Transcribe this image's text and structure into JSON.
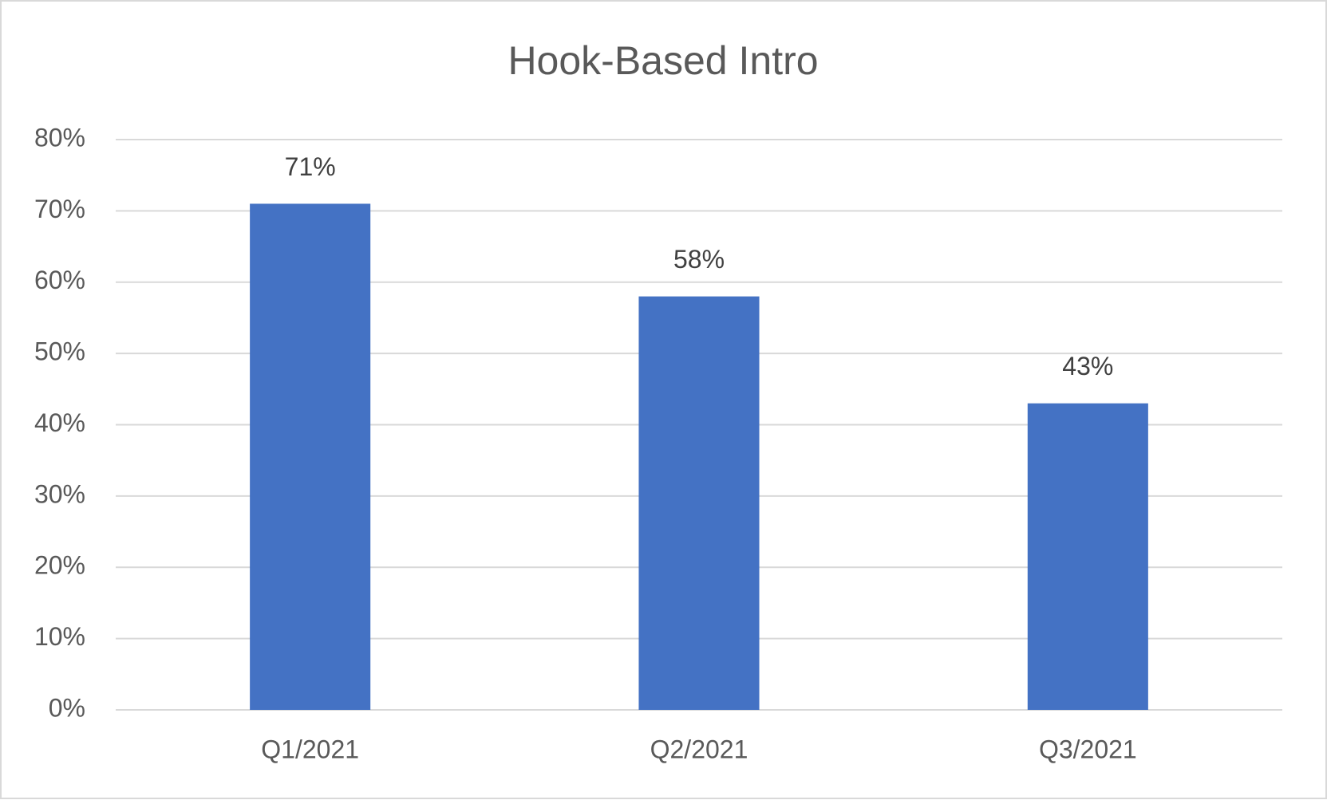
{
  "chart_data": {
    "type": "bar",
    "title": "Hook-Based Intro",
    "categories": [
      "Q1/2021",
      "Q2/2021",
      "Q3/2021"
    ],
    "values": [
      71,
      58,
      43
    ],
    "value_labels": [
      "71%",
      "58%",
      "43%"
    ],
    "color": "#4472c4",
    "ylim": [
      0,
      80
    ],
    "yticks": [
      {
        "value": 0,
        "label": "0%"
      },
      {
        "value": 10,
        "label": "10%"
      },
      {
        "value": 20,
        "label": "20%"
      },
      {
        "value": 30,
        "label": "30%"
      },
      {
        "value": 40,
        "label": "40%"
      },
      {
        "value": 50,
        "label": "50%"
      },
      {
        "value": 60,
        "label": "60%"
      },
      {
        "value": 70,
        "label": "70%"
      },
      {
        "value": 80,
        "label": "80%"
      }
    ],
    "grid": true
  }
}
